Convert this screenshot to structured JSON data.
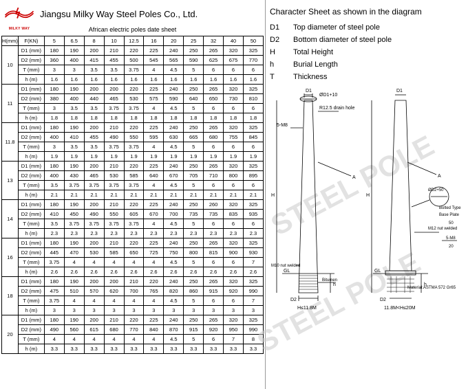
{
  "header": {
    "logo_text": "MILKY WAY",
    "company": "Jiangsu Milky Way Steel Poles Co., Ltd.",
    "subtitle": "African electric poles date sheet"
  },
  "table": {
    "header_h": "H(mm)",
    "header_f": "F(KN)",
    "loads": [
      "5",
      "6.5",
      "8",
      "10",
      "12.5",
      "16",
      "20",
      "25",
      "32",
      "40",
      "50"
    ],
    "param_labels": [
      "D1 (mm)",
      "D2 (mm)",
      "T (mm)",
      "h (m)"
    ],
    "groups": [
      {
        "h": "10",
        "rows": [
          [
            "180",
            "190",
            "200",
            "210",
            "220",
            "225",
            "240",
            "250",
            "265",
            "320",
            "325"
          ],
          [
            "360",
            "400",
            "415",
            "455",
            "500",
            "545",
            "565",
            "590",
            "625",
            "675",
            "770"
          ],
          [
            "3",
            "3",
            "3.5",
            "3.5",
            "3.75",
            "4",
            "4.5",
            "5",
            "6",
            "6",
            "6"
          ],
          [
            "1.6",
            "1.6",
            "1.6",
            "1.6",
            "1.6",
            "1.6",
            "1.6",
            "1.6",
            "1.6",
            "1.6",
            "1.6"
          ]
        ]
      },
      {
        "h": "11",
        "rows": [
          [
            "180",
            "190",
            "200",
            "200",
            "220",
            "225",
            "240",
            "250",
            "265",
            "320",
            "325"
          ],
          [
            "380",
            "400",
            "440",
            "465",
            "530",
            "575",
            "590",
            "640",
            "650",
            "730",
            "810"
          ],
          [
            "3",
            "3.5",
            "3.5",
            "3.75",
            "3.75",
            "4",
            "4.5",
            "5",
            "6",
            "6",
            "6"
          ],
          [
            "1.8",
            "1.8",
            "1.8",
            "1.8",
            "1.8",
            "1.8",
            "1.8",
            "1.8",
            "1.8",
            "1.8",
            "1.8"
          ]
        ]
      },
      {
        "h": "11.8",
        "rows": [
          [
            "180",
            "190",
            "200",
            "210",
            "220",
            "225",
            "240",
            "250",
            "265",
            "320",
            "325"
          ],
          [
            "400",
            "410",
            "455",
            "490",
            "550",
            "595",
            "630",
            "665",
            "680",
            "755",
            "845"
          ],
          [
            "3",
            "3.5",
            "3.5",
            "3.75",
            "3.75",
            "4",
            "4.5",
            "5",
            "6",
            "6",
            "6"
          ],
          [
            "1.9",
            "1.9",
            "1.9",
            "1.9",
            "1.9",
            "1.9",
            "1.9",
            "1.9",
            "1.9",
            "1.9",
            "1.9"
          ]
        ]
      },
      {
        "h": "13",
        "rows": [
          [
            "180",
            "190",
            "200",
            "210",
            "220",
            "225",
            "240",
            "250",
            "265",
            "320",
            "325"
          ],
          [
            "400",
            "430",
            "465",
            "530",
            "585",
            "640",
            "670",
            "705",
            "710",
            "800",
            "895"
          ],
          [
            "3.5",
            "3.75",
            "3.75",
            "3.75",
            "3.75",
            "4",
            "4.5",
            "5",
            "6",
            "6",
            "6"
          ],
          [
            "2.1",
            "2.1",
            "2.1",
            "2.1",
            "2.1",
            "2.1",
            "2.1",
            "2.1",
            "2.1",
            "2.1",
            "2.1"
          ]
        ]
      },
      {
        "h": "14",
        "rows": [
          [
            "180",
            "190",
            "200",
            "210",
            "220",
            "225",
            "240",
            "250",
            "260",
            "320",
            "325"
          ],
          [
            "410",
            "450",
            "490",
            "550",
            "605",
            "670",
            "700",
            "735",
            "735",
            "835",
            "935"
          ],
          [
            "3.5",
            "3.75",
            "3.75",
            "3.75",
            "3.75",
            "4",
            "4.5",
            "5",
            "6",
            "6",
            "6"
          ],
          [
            "2.3",
            "2.3",
            "2.3",
            "2.3",
            "2.3",
            "2.3",
            "2.3",
            "2.3",
            "2.3",
            "2.3",
            "2.3"
          ]
        ]
      },
      {
        "h": "16",
        "rows": [
          [
            "180",
            "190",
            "200",
            "210",
            "220",
            "225",
            "240",
            "250",
            "265",
            "320",
            "325"
          ],
          [
            "445",
            "470",
            "530",
            "585",
            "650",
            "725",
            "750",
            "800",
            "815",
            "900",
            "930"
          ],
          [
            "3.75",
            "4",
            "4",
            "4",
            "4",
            "4",
            "4.5",
            "5",
            "6",
            "6",
            "7"
          ],
          [
            "2.6",
            "2.6",
            "2.6",
            "2.6",
            "2.6",
            "2.6",
            "2.6",
            "2.6",
            "2.6",
            "2.6",
            "2.6"
          ]
        ]
      },
      {
        "h": "18",
        "rows": [
          [
            "180",
            "190",
            "200",
            "200",
            "210",
            "220",
            "240",
            "250",
            "265",
            "320",
            "325"
          ],
          [
            "475",
            "510",
            "570",
            "620",
            "700",
            "765",
            "820",
            "860",
            "915",
            "920",
            "990"
          ],
          [
            "3.75",
            "4",
            "4",
            "4",
            "4",
            "4",
            "4.5",
            "5",
            "6",
            "6",
            "7"
          ],
          [
            "3",
            "3",
            "3",
            "3",
            "3",
            "3",
            "3",
            "3",
            "3",
            "3",
            "3"
          ]
        ]
      },
      {
        "h": "20",
        "rows": [
          [
            "180",
            "190",
            "200",
            "210",
            "220",
            "225",
            "240",
            "250",
            "265",
            "320",
            "325"
          ],
          [
            "490",
            "560",
            "615",
            "680",
            "770",
            "840",
            "870",
            "915",
            "920",
            "950",
            "990"
          ],
          [
            "4",
            "4",
            "4",
            "4",
            "4",
            "4",
            "4.5",
            "5",
            "6",
            "7",
            "8"
          ],
          [
            "3.3",
            "3.3",
            "3.3",
            "3.3",
            "3.3",
            "3.3",
            "3.3",
            "3.3",
            "3.3",
            "3.3",
            "3.3"
          ]
        ]
      }
    ]
  },
  "character": {
    "title": "Character Sheet as shown in the diagram",
    "items": [
      {
        "key": "D1",
        "desc": "Top diameter of steel pole"
      },
      {
        "key": "D2",
        "desc": "Bottom diameter of steel pole"
      },
      {
        "key": "H",
        "desc": "Total Height"
      },
      {
        "key": "h",
        "desc": "Burial Length"
      },
      {
        "key": "T",
        "desc": "Thickness"
      }
    ]
  },
  "diagram": {
    "watermark": "STEEL POLE",
    "labels": {
      "drain": "R12.5 drain hole",
      "bolted": "Bolted Type",
      "baseplate": "Base Plate",
      "m12": "M12   nut welded",
      "m10": "M10 nut welded",
      "bitumen": "Bitumen",
      "material": "Material:ASTMA 572 Gr65",
      "gl": "GL",
      "h1": "H≤11.8M",
      "h2": "11.8M<H≤20M",
      "d1": "D1",
      "d2": "D2",
      "h_big": "H",
      "h_small": "h",
      "a": "A",
      "sm8": "5-M8",
      "dia10": "ØD1+10",
      "dia50": "ØD2+50",
      "num50": "50",
      "num20": "20"
    },
    "colors": {
      "line": "#000",
      "text": "#000"
    }
  }
}
